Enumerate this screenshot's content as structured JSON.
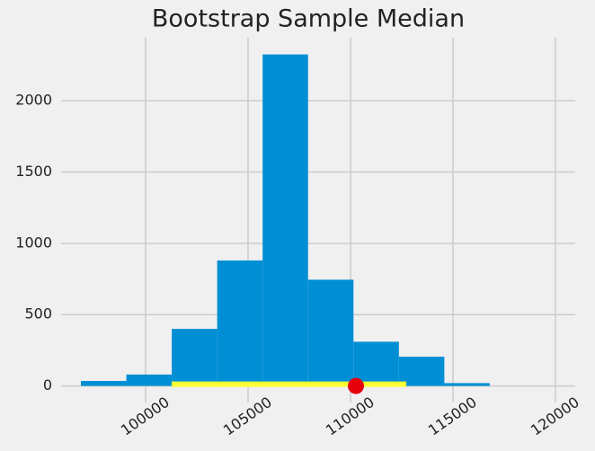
{
  "chart_data": {
    "type": "histogram",
    "title": "Bootstrap Sample Median",
    "bins": [
      96842,
      99059,
      101276,
      103493,
      105710,
      107927,
      110144,
      112361,
      114578,
      116795
    ],
    "counts": [
      35,
      80,
      400,
      880,
      2325,
      745,
      310,
      205,
      20
    ],
    "color": "#008fd5",
    "interval": [
      101272,
      112719
    ],
    "interval_color": "#ffff33",
    "point": 110263,
    "point_color": "#e5000b",
    "xlim": [
      95877,
      120965
    ],
    "xticks": [
      100000,
      105000,
      110000,
      115000,
      120000
    ],
    "ylim": [
      -116,
      2442
    ],
    "yticks": [
      0,
      500,
      1000,
      1500,
      2000
    ],
    "grid": true
  }
}
